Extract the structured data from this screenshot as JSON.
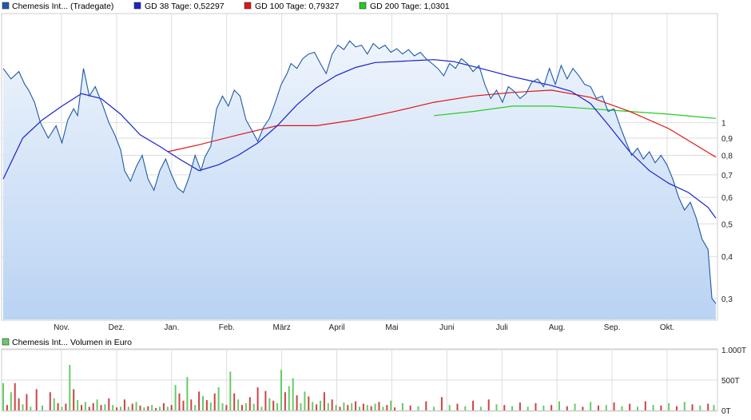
{
  "legend": {
    "price": "Chemesis Int... (Tradegate)",
    "gd38": "GD 38 Tage: 0,52297",
    "gd100": "GD 100 Tage: 0,79327",
    "gd200": "GD 200 Tage: 1,0301",
    "volume": "Chemesis Int... Volumen in Euro"
  },
  "colors": {
    "price": "#1f5aa6",
    "price_fill_top": "#eef4fc",
    "price_fill_bottom": "#b9d3f3",
    "gd38": "#1a22cc",
    "gd100": "#e01515",
    "gd200": "#22cc22",
    "vol_up": "#66cc66",
    "vol_down": "#cc4444",
    "grid": "#dddddd",
    "frame": "#cccccc"
  },
  "chart_data": [
    {
      "type": "line",
      "scale": "log",
      "grid": true,
      "legend_position": "top-left",
      "ylim": [
        0.26,
        2.1
      ],
      "yticks": [
        0.3,
        0.4,
        0.5,
        0.6,
        0.7,
        0.8,
        0.9,
        1
      ],
      "ytick_labels": [
        "0,3",
        "0,4",
        "0,5",
        "0,6",
        "0,7",
        "0,8",
        "0,9",
        "1"
      ],
      "x_labels": [
        "Nov.",
        "Dez.",
        "Jan.",
        "Feb.",
        "März",
        "April",
        "Mai",
        "Juni",
        "Juli",
        "Aug.",
        "Sep.",
        "Okt."
      ],
      "series": [
        {
          "name": "Chemesis Int... (Tradegate)",
          "x": [
            0,
            4,
            8,
            11,
            13,
            16,
            19,
            23,
            27,
            30,
            33,
            36,
            38,
            41,
            44,
            47,
            51,
            54,
            57,
            60,
            62,
            65,
            68,
            71,
            74,
            77,
            80,
            83,
            86,
            89,
            92,
            95,
            98,
            101,
            103,
            106,
            109,
            112,
            115,
            118,
            121,
            124,
            127,
            130,
            133,
            136,
            139,
            142,
            145,
            147,
            150,
            153,
            156,
            159,
            162,
            165,
            168,
            171,
            174,
            177,
            180,
            183,
            186,
            189,
            192,
            195,
            198,
            201,
            204,
            207,
            210,
            213,
            216,
            219,
            222,
            225,
            228,
            231,
            234,
            237,
            240,
            243,
            246,
            249,
            252,
            255,
            258,
            261,
            264,
            267,
            270,
            273,
            276,
            279,
            282,
            285,
            288,
            291,
            294,
            297,
            300,
            303,
            306,
            309,
            312,
            315,
            318,
            321,
            324,
            327,
            330,
            333,
            336,
            339,
            342,
            345,
            348,
            351,
            354,
            357,
            360,
            362,
            364
          ],
          "values": [
            1.45,
            1.35,
            1.42,
            1.3,
            1.25,
            1.15,
            1.0,
            0.9,
            0.98,
            0.87,
            1.02,
            1.1,
            1.05,
            1.45,
            1.2,
            1.28,
            1.12,
            1.0,
            0.92,
            0.83,
            0.72,
            0.67,
            0.74,
            0.8,
            0.68,
            0.63,
            0.72,
            0.78,
            0.7,
            0.64,
            0.62,
            0.69,
            0.8,
            0.72,
            0.79,
            0.85,
            1.1,
            1.2,
            1.12,
            1.25,
            1.2,
            1.02,
            0.95,
            0.88,
            0.97,
            1.03,
            1.15,
            1.3,
            1.4,
            1.5,
            1.45,
            1.55,
            1.6,
            1.62,
            1.5,
            1.4,
            1.6,
            1.7,
            1.65,
            1.75,
            1.68,
            1.7,
            1.6,
            1.72,
            1.66,
            1.7,
            1.62,
            1.66,
            1.6,
            1.65,
            1.58,
            1.62,
            1.55,
            1.5,
            1.45,
            1.38,
            1.5,
            1.45,
            1.55,
            1.5,
            1.42,
            1.48,
            1.3,
            1.18,
            1.25,
            1.15,
            1.28,
            1.24,
            1.18,
            1.22,
            1.32,
            1.35,
            1.28,
            1.45,
            1.3,
            1.48,
            1.35,
            1.45,
            1.38,
            1.3,
            1.28,
            1.18,
            1.2,
            1.08,
            1.1,
            0.98,
            0.88,
            0.8,
            0.84,
            0.78,
            0.82,
            0.76,
            0.8,
            0.75,
            0.68,
            0.6,
            0.55,
            0.58,
            0.52,
            0.45,
            0.42,
            0.3,
            0.29
          ]
        },
        {
          "name": "GD 38 Tage: 0,52297",
          "x": [
            0,
            10,
            20,
            30,
            40,
            50,
            60,
            70,
            80,
            90,
            100,
            110,
            120,
            130,
            140,
            150,
            160,
            170,
            180,
            190,
            200,
            210,
            220,
            230,
            240,
            250,
            260,
            270,
            280,
            290,
            300,
            310,
            320,
            330,
            340,
            350,
            360,
            364
          ],
          "values": [
            0.68,
            0.9,
            1.02,
            1.12,
            1.22,
            1.18,
            1.06,
            0.92,
            0.85,
            0.78,
            0.72,
            0.75,
            0.8,
            0.87,
            0.98,
            1.13,
            1.27,
            1.38,
            1.46,
            1.51,
            1.52,
            1.53,
            1.54,
            1.52,
            1.47,
            1.42,
            1.37,
            1.33,
            1.29,
            1.24,
            1.14,
            0.97,
            0.82,
            0.72,
            0.66,
            0.62,
            0.56,
            0.52
          ]
        },
        {
          "name": "GD 100 Tage: 0,79327",
          "x": [
            84,
            100,
            120,
            140,
            160,
            180,
            200,
            220,
            240,
            260,
            280,
            300,
            320,
            340,
            364
          ],
          "values": [
            0.82,
            0.86,
            0.92,
            0.98,
            0.98,
            1.02,
            1.08,
            1.15,
            1.2,
            1.23,
            1.25,
            1.19,
            1.08,
            0.96,
            0.79
          ]
        },
        {
          "name": "GD 200 Tage: 1,0301",
          "x": [
            220,
            240,
            260,
            280,
            300,
            320,
            340,
            364
          ],
          "values": [
            1.05,
            1.08,
            1.12,
            1.12,
            1.1,
            1.08,
            1.06,
            1.03
          ]
        }
      ]
    },
    {
      "type": "bar",
      "title": "Chemesis Int... Volumen in Euro",
      "ylim": [
        0,
        1000
      ],
      "yticks": [
        0,
        500,
        1000
      ],
      "ytick_labels": [
        "0T",
        "500T",
        "1.000T"
      ],
      "x": [
        0,
        2,
        4,
        6,
        8,
        10,
        12,
        14,
        17,
        20,
        24,
        26,
        28,
        30,
        32,
        34,
        36,
        38,
        40,
        42,
        44,
        46,
        48,
        50,
        52,
        54,
        56,
        58,
        60,
        62,
        64,
        66,
        68,
        70,
        72,
        74,
        76,
        78,
        80,
        82,
        84,
        86,
        88,
        90,
        92,
        94,
        96,
        98,
        100,
        102,
        104,
        106,
        108,
        110,
        112,
        114,
        116,
        118,
        120,
        122,
        124,
        126,
        128,
        130,
        132,
        134,
        136,
        138,
        140,
        142,
        144,
        146,
        148,
        150,
        152,
        154,
        156,
        158,
        160,
        162,
        164,
        166,
        168,
        170,
        172,
        174,
        176,
        178,
        180,
        182,
        184,
        186,
        188,
        190,
        192,
        194,
        196,
        198,
        200,
        204,
        208,
        212,
        216,
        220,
        224,
        228,
        232,
        236,
        240,
        244,
        248,
        252,
        256,
        260,
        264,
        268,
        272,
        276,
        280,
        284,
        288,
        292,
        296,
        300,
        304,
        308,
        312,
        316,
        320,
        324,
        328,
        332,
        336,
        340,
        344,
        348,
        352,
        356,
        360,
        363
      ],
      "values": [
        450,
        90,
        300,
        450,
        200,
        100,
        270,
        60,
        350,
        80,
        300,
        200,
        120,
        60,
        110,
        750,
        350,
        170,
        90,
        140,
        60,
        120,
        180,
        90,
        100,
        200,
        90,
        50,
        60,
        180,
        60,
        110,
        140,
        80,
        50,
        70,
        90,
        40,
        60,
        120,
        60,
        90,
        420,
        280,
        160,
        550,
        180,
        90,
        310,
        240,
        170,
        130,
        280,
        380,
        120,
        90,
        640,
        280,
        180,
        90,
        120,
        220,
        110,
        380,
        60,
        320,
        200,
        160,
        120,
        670,
        300,
        400,
        530,
        250,
        120,
        310,
        230,
        140,
        100,
        160,
        300,
        120,
        180,
        90,
        60,
        130,
        90,
        120,
        150,
        60,
        110,
        90,
        70,
        110,
        140,
        60,
        90,
        160,
        50,
        120,
        80,
        70,
        150,
        60,
        220,
        90,
        110,
        70,
        160,
        60,
        180,
        100,
        90,
        70,
        130,
        60,
        120,
        80,
        90,
        150,
        70,
        110,
        60,
        140,
        80,
        90,
        130,
        70,
        110,
        60,
        150,
        90,
        80,
        120,
        70,
        140,
        100,
        80,
        110,
        90
      ],
      "direction": [
        "up",
        "down",
        "up",
        "down",
        "down",
        "up",
        "down",
        "up",
        "down",
        "up",
        "down",
        "up",
        "down",
        "up",
        "down",
        "up",
        "down",
        "up",
        "down",
        "up",
        "down",
        "down",
        "up",
        "down",
        "up",
        "down",
        "up",
        "down",
        "up",
        "down",
        "up",
        "down",
        "up",
        "down",
        "up",
        "down",
        "up",
        "down",
        "up",
        "down",
        "up",
        "down",
        "up",
        "down",
        "down",
        "up",
        "down",
        "up",
        "down",
        "up",
        "down",
        "up",
        "down",
        "up",
        "up",
        "down",
        "up",
        "down",
        "up",
        "down",
        "up",
        "down",
        "up",
        "down",
        "up",
        "down",
        "up",
        "down",
        "up",
        "up",
        "down",
        "up",
        "up",
        "down",
        "up",
        "up",
        "down",
        "up",
        "down",
        "up",
        "down",
        "up",
        "down",
        "up",
        "down",
        "up",
        "down",
        "up",
        "down",
        "up",
        "down",
        "up",
        "down",
        "up",
        "down",
        "up",
        "down",
        "up",
        "down",
        "up",
        "down",
        "up",
        "down",
        "up",
        "down",
        "up",
        "down",
        "up",
        "down",
        "up",
        "down",
        "up",
        "down",
        "up",
        "down",
        "up",
        "down",
        "up",
        "down",
        "up",
        "down",
        "up",
        "down",
        "up",
        "down",
        "up",
        "down",
        "up",
        "down",
        "up",
        "down",
        "up",
        "down",
        "up",
        "down",
        "up",
        "down",
        "up",
        "down",
        "up"
      ]
    }
  ]
}
